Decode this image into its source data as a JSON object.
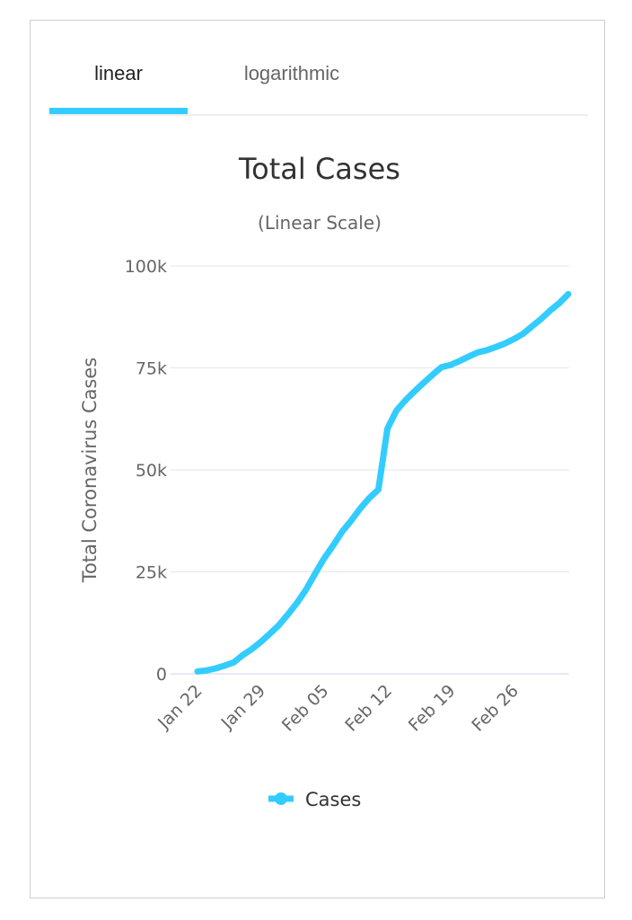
{
  "tabs": [
    {
      "label": "linear",
      "active": true
    },
    {
      "label": "logarithmic",
      "active": false
    }
  ],
  "colors": {
    "series": "#33ccff",
    "grid": "#e6e6e6",
    "axis": "#ccd6eb",
    "tab_indicator": "#33ccff"
  },
  "chart_data": {
    "type": "line",
    "title": "Total Cases",
    "subtitle": "(Linear Scale)",
    "ylabel": "Total Coronavirus Cases",
    "xlabel": "",
    "ylim": [
      0,
      100000
    ],
    "yticks": [
      0,
      25000,
      50000,
      75000,
      100000
    ],
    "ytick_labels": [
      "0",
      "25k",
      "50k",
      "75k",
      "100k"
    ],
    "xtick_labels": [
      "Jan 22",
      "Jan 29",
      "Feb 05",
      "Feb 12",
      "Feb 19",
      "Feb 26"
    ],
    "grid": true,
    "legend_position": "bottom-center",
    "legend": [
      "Cases"
    ],
    "x": [
      "Jan 22",
      "Jan 23",
      "Jan 24",
      "Jan 25",
      "Jan 26",
      "Jan 27",
      "Jan 28",
      "Jan 29",
      "Jan 30",
      "Jan 31",
      "Feb 01",
      "Feb 02",
      "Feb 03",
      "Feb 04",
      "Feb 05",
      "Feb 06",
      "Feb 07",
      "Feb 08",
      "Feb 09",
      "Feb 10",
      "Feb 11",
      "Feb 12",
      "Feb 13",
      "Feb 14",
      "Feb 15",
      "Feb 16",
      "Feb 17",
      "Feb 18",
      "Feb 19",
      "Feb 20",
      "Feb 21",
      "Feb 22",
      "Feb 23",
      "Feb 24",
      "Feb 25",
      "Feb 26",
      "Feb 27",
      "Feb 28",
      "Feb 29",
      "Mar 01",
      "Mar 02",
      "Mar 03"
    ],
    "series": [
      {
        "name": "Cases",
        "values": [
          580,
          845,
          1317,
          2015,
          2800,
          4581,
          6058,
          7813,
          9821,
          11948,
          14551,
          17389,
          20628,
          24553,
          28276,
          31481,
          34886,
          37558,
          40554,
          43103,
          45171,
          60092,
          64541,
          67103,
          69265,
          71332,
          73327,
          75191,
          75723,
          76719,
          77804,
          78812,
          79339,
          80132,
          80995,
          82101,
          83365,
          85203,
          87024,
          89068,
          90869,
          93091
        ]
      }
    ]
  }
}
